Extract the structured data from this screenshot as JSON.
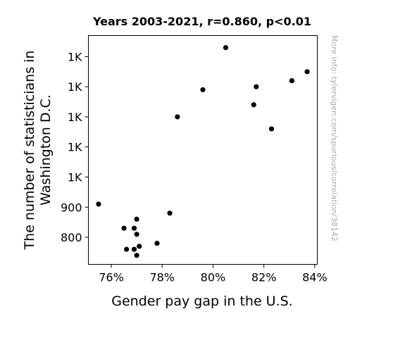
{
  "chart_data": {
    "type": "scatter",
    "title": "Years 2003-2021, r=0.860, p<0.01",
    "xlabel": "Gender pay gap in the U.S.",
    "ylabel_lines": [
      "The number of statisticians in",
      "Washington D.C."
    ],
    "xlim": [
      75.1,
      84.1
    ],
    "ylim": [
      710,
      1470
    ],
    "x_ticks": [
      {
        "value": 76,
        "label": "76%"
      },
      {
        "value": 78,
        "label": "78%"
      },
      {
        "value": 80,
        "label": "80%"
      },
      {
        "value": 82,
        "label": "82%"
      },
      {
        "value": 84,
        "label": "84%"
      }
    ],
    "y_ticks": [
      {
        "value": 800,
        "label": "800"
      },
      {
        "value": 900,
        "label": "900"
      },
      {
        "value": 1000,
        "label": "1K"
      },
      {
        "value": 1100,
        "label": "1K"
      },
      {
        "value": 1200,
        "label": "1K"
      },
      {
        "value": 1300,
        "label": "1K"
      },
      {
        "value": 1400,
        "label": "1K"
      }
    ],
    "points": [
      {
        "x": 75.5,
        "y": 910
      },
      {
        "x": 76.5,
        "y": 830
      },
      {
        "x": 76.6,
        "y": 760
      },
      {
        "x": 76.9,
        "y": 830
      },
      {
        "x": 76.9,
        "y": 760
      },
      {
        "x": 77.0,
        "y": 860
      },
      {
        "x": 77.0,
        "y": 810
      },
      {
        "x": 77.0,
        "y": 740
      },
      {
        "x": 77.1,
        "y": 770
      },
      {
        "x": 77.8,
        "y": 780
      },
      {
        "x": 78.3,
        "y": 880
      },
      {
        "x": 78.6,
        "y": 1200
      },
      {
        "x": 79.6,
        "y": 1290
      },
      {
        "x": 80.5,
        "y": 1430
      },
      {
        "x": 81.6,
        "y": 1240
      },
      {
        "x": 81.7,
        "y": 1300
      },
      {
        "x": 82.3,
        "y": 1160
      },
      {
        "x": 83.1,
        "y": 1320
      },
      {
        "x": 83.7,
        "y": 1350
      }
    ],
    "grid": false,
    "legend": "none",
    "marker_color": "#000000"
  },
  "watermark": "More info: tylervigen.com/spurious/correlation/38142"
}
